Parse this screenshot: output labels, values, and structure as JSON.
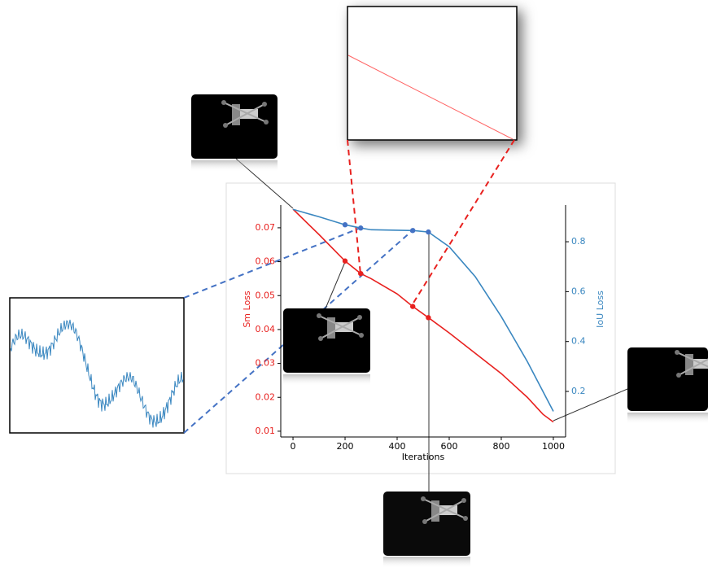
{
  "chart_data": {
    "type": "line",
    "x": [
      0,
      100,
      200,
      260,
      300,
      400,
      460,
      520,
      600,
      700,
      800,
      900,
      960,
      1000
    ],
    "series": [
      {
        "name": "Sm Loss",
        "color": "#e8211f",
        "values": [
          0.0755,
          0.068,
          0.0602,
          0.0565,
          0.055,
          0.0505,
          0.0468,
          0.0435,
          0.039,
          0.033,
          0.027,
          0.02,
          0.015,
          0.0127
        ]
      },
      {
        "name": "IoU Loss",
        "color": "#3a87c0",
        "axis": "y2",
        "values": [
          0.93,
          0.9,
          0.868,
          0.855,
          0.848,
          0.846,
          0.845,
          0.839,
          0.78,
          0.66,
          0.5,
          0.32,
          0.2,
          0.12
        ]
      }
    ],
    "marker_x": [
      200,
      260,
      460,
      520
    ],
    "xlabel": "Iterations",
    "ylabel": "Sm Loss",
    "y2label": "IoU Loss",
    "xlim": [
      -47,
      1047
    ],
    "xticks": [
      0,
      200,
      400,
      600,
      800,
      1000
    ],
    "ylim": [
      0.0083,
      0.0767
    ],
    "yticks": [
      0.01,
      0.02,
      0.03,
      0.04,
      0.05,
      0.06,
      0.07
    ],
    "y2lim": [
      0.0174,
      0.947
    ],
    "y2ticks": [
      0.2,
      0.4,
      0.6,
      0.8
    ]
  }
}
